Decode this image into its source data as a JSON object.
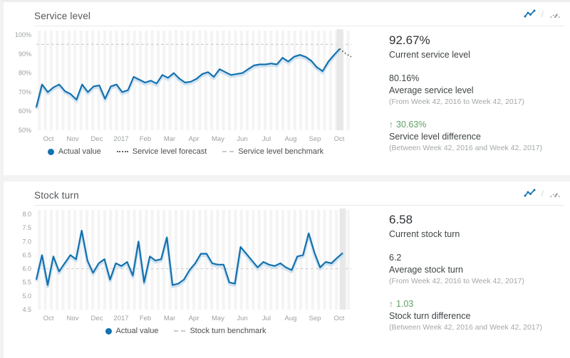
{
  "colors": {
    "line": "#1371ae",
    "line_shadow": "#c9def0",
    "benchmark": "#cdcdcd",
    "forecast": "#55595c",
    "positive_diff": "#5f9e61",
    "tick_label": "#9b9fa2",
    "stripe": "#f4f4f4",
    "highlight_band": "#e6e6e6"
  },
  "panels": [
    {
      "title": "Service level",
      "toolbar": {
        "chart_type_icon": "line-chart-icon",
        "separator": "/",
        "alt_view_icon": "gauge-icon"
      },
      "legend": [
        {
          "label": "Actual value",
          "marker": "dot"
        },
        {
          "label": "Service level forecast",
          "marker": "dotted"
        },
        {
          "label": "Service level benchmark",
          "marker": "dash"
        }
      ],
      "stats": [
        {
          "value": "92.67%",
          "label": "Current service level"
        },
        {
          "value": "80.16%",
          "label": "Average service level",
          "note": "(From Week 42, 2016 to Week 42, 2017)"
        },
        {
          "arrow": "↑",
          "value": "30.63%",
          "label": "Service level difference",
          "note": "(Between Week 42, 2016 and Week 42, 2017)"
        }
      ]
    },
    {
      "title": "Stock turn",
      "toolbar": {
        "chart_type_icon": "line-chart-icon",
        "separator": "/",
        "alt_view_icon": "gauge-icon"
      },
      "legend": [
        {
          "label": "Actual value",
          "marker": "dot"
        },
        {
          "label": "Stock turn benchmark",
          "marker": "dash"
        }
      ],
      "stats": [
        {
          "value": "6.58",
          "label": "Current stock turn"
        },
        {
          "value": "6.2",
          "label": "Average stock turn",
          "note": "(From Week 42, 2016 to Week 42, 2017)"
        },
        {
          "arrow": "↑",
          "value": "1.03",
          "label": "Stock turn difference",
          "note": "(Between Week 42, 2016 and Week 42, 2017)"
        }
      ]
    }
  ],
  "chart_data": [
    {
      "type": "line",
      "title": "Service level",
      "unit": "%",
      "x_tick_labels": [
        "Oct",
        "Nov",
        "Dec",
        "2017",
        "Feb",
        "Mar",
        "Apr",
        "May",
        "Jun",
        "Jul",
        "Aug",
        "Sep",
        "Oct"
      ],
      "y_tick_labels": [
        "100%",
        "90%",
        "80%",
        "70%",
        "60%",
        "50%"
      ],
      "ylim": [
        50,
        100
      ],
      "grid": "vertical-stripes",
      "legend_position": "bottom",
      "highlight_last_point": true,
      "series": [
        {
          "name": "Actual value",
          "values": [
            62,
            74,
            70,
            72.5,
            74,
            70.5,
            69,
            66,
            74,
            70,
            73,
            73.5,
            66.5,
            73,
            74,
            70,
            71,
            78,
            76.5,
            75,
            76,
            74.5,
            79,
            77.5,
            80,
            77,
            75,
            75.5,
            77,
            79.5,
            80.5,
            78,
            82,
            80.5,
            79,
            79.5,
            80,
            82,
            84,
            84.5,
            84.5,
            85,
            84.5,
            88,
            86,
            88.5,
            89.5,
            88.5,
            86.5,
            83,
            81,
            86,
            89.5,
            92.67
          ]
        }
      ],
      "forecast": {
        "name": "Service level forecast",
        "values": [
          92.67,
          90.2,
          88.5
        ]
      },
      "benchmark": {
        "name": "Service level benchmark",
        "value": 95
      }
    },
    {
      "type": "line",
      "title": "Stock turn",
      "unit": "",
      "x_tick_labels": [
        "Oct",
        "Nov",
        "Dec",
        "2017",
        "Feb",
        "Mar",
        "Apr",
        "May",
        "Jun",
        "Jul",
        "Aug",
        "Sep",
        "Oct"
      ],
      "y_tick_labels": [
        "8.0",
        "7.5",
        "7.0",
        "6.5",
        "6.0",
        "5.5",
        "5.0",
        "4.5"
      ],
      "ylim": [
        4.5,
        8.0
      ],
      "grid": "vertical-stripes",
      "legend_position": "bottom",
      "highlight_last_point": true,
      "series": [
        {
          "name": "Actual value",
          "values": [
            5.6,
            6.5,
            5.4,
            6.45,
            5.9,
            6.2,
            6.5,
            6.35,
            7.4,
            6.3,
            5.85,
            6.2,
            6.35,
            5.6,
            6.2,
            6.1,
            6.25,
            5.75,
            7.0,
            5.5,
            6.45,
            6.3,
            6.35,
            7.15,
            5.4,
            5.45,
            5.6,
            5.95,
            6.2,
            6.55,
            6.55,
            6.2,
            6.15,
            6.15,
            5.5,
            5.45,
            6.8,
            6.55,
            6.3,
            6.05,
            6.25,
            6.15,
            6.1,
            6.2,
            6.05,
            5.95,
            6.45,
            6.5,
            7.3,
            6.6,
            6.05,
            6.25,
            6.2,
            6.4,
            6.58
          ]
        }
      ],
      "benchmark": {
        "name": "Stock turn benchmark",
        "value": 6.0
      }
    }
  ]
}
